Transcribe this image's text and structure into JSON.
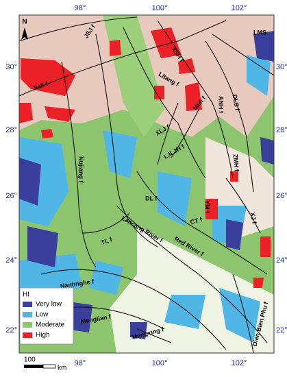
{
  "map": {
    "north": "N",
    "top_labels": [
      "98°",
      "100°",
      "102°"
    ],
    "bottom_labels": [
      "98°",
      "100°",
      "102°"
    ],
    "left_labels": [
      "30°",
      "28°",
      "26°",
      "24°",
      "22°"
    ],
    "right_labels": [
      "30°",
      "28°",
      "26°",
      "24°",
      "22°"
    ],
    "faults": [
      "JSJ f",
      "XSH f",
      "LMS",
      "Litang f",
      "Jiali f",
      "Muli f",
      "ANH f",
      "DLS f",
      "XLJ f",
      "LJLJH f",
      "ZMH f",
      "Nujiang f",
      "DL f",
      "YM f",
      "XJ f",
      "CT f",
      "Lancang River f",
      "Red River f",
      "TL f",
      "Nantinghe f",
      "Menglian f",
      "Mengxing f",
      "Dien Bien Phu f"
    ],
    "legend": {
      "title": "HI",
      "items": [
        "Very low",
        "Low",
        "Moderate",
        "High"
      ]
    },
    "scale": {
      "value": "100",
      "unit": "km"
    }
  }
}
